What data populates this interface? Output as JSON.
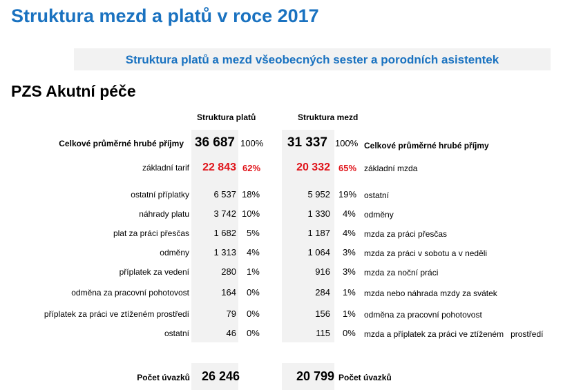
{
  "title": "Struktura mezd a platů v roce 2017",
  "banner": "Struktura platů a mezd všeobecných sester a porodních asistentek",
  "section": "PZS Akutní péče",
  "headers": {
    "platy": "Struktura platů",
    "mzdy": "Struktura mezd"
  },
  "total": {
    "left_label": "Celkové průměrné hrubé příjmy",
    "plat_value": "36 687",
    "plat_pct": "100%",
    "mzda_value": "31 337",
    "mzda_pct": "100%",
    "right_label": "Celkové průměrné hrubé příjmy"
  },
  "rows": [
    {
      "plat_label": "základní tarif",
      "plat_value": "22 843",
      "plat_pct": "62%",
      "mzda_value": "20 332",
      "mzda_pct": "65%",
      "mzda_label": "základní mzda"
    },
    {
      "plat_label": "ostatní příplatky",
      "plat_value": "6 537",
      "plat_pct": "18%",
      "mzda_value": "5 952",
      "mzda_pct": "19%",
      "mzda_label": "ostatní"
    },
    {
      "plat_label": "náhrady platu",
      "plat_value": "3 742",
      "plat_pct": "10%",
      "mzda_value": "1 330",
      "mzda_pct": "4%",
      "mzda_label": "odměny"
    },
    {
      "plat_label": "plat za práci přesčas",
      "plat_value": "1 682",
      "plat_pct": "5%",
      "mzda_value": "1 187",
      "mzda_pct": "4%",
      "mzda_label": "mzda za práci přesčas"
    },
    {
      "plat_label": "odměny",
      "plat_value": "1 313",
      "plat_pct": "4%",
      "mzda_value": "1 064",
      "mzda_pct": "3%",
      "mzda_label": "mzda za práci v sobotu a v neděli"
    },
    {
      "plat_label": "příplatek za vedení",
      "plat_value": "280",
      "plat_pct": "1%",
      "mzda_value": "916",
      "mzda_pct": "3%",
      "mzda_label": "mzda za noční práci"
    },
    {
      "plat_label": "odměna za pracovní pohotovost",
      "plat_value": "164",
      "plat_pct": "0%",
      "mzda_value": "284",
      "mzda_pct": "1%",
      "mzda_label": "mzda nebo náhrada mzdy za svátek"
    },
    {
      "plat_label": "příplatek za práci ve ztíženém prostředí",
      "plat_value": "79",
      "plat_pct": "0%",
      "mzda_value": "156",
      "mzda_pct": "1%",
      "mzda_label": "odměna za pracovní pohotovost"
    },
    {
      "plat_label": "ostatní",
      "plat_value": "46",
      "plat_pct": "0%",
      "mzda_value": "115",
      "mzda_pct": "0%",
      "mzda_label": "mzda a příplatek za práci ve ztíženém   prostředí"
    }
  ],
  "uvazky": {
    "left_label": "Počet úvazků",
    "plat_value": "26 246",
    "mzda_value": "20 799",
    "right_label": "Počet úvazků"
  }
}
